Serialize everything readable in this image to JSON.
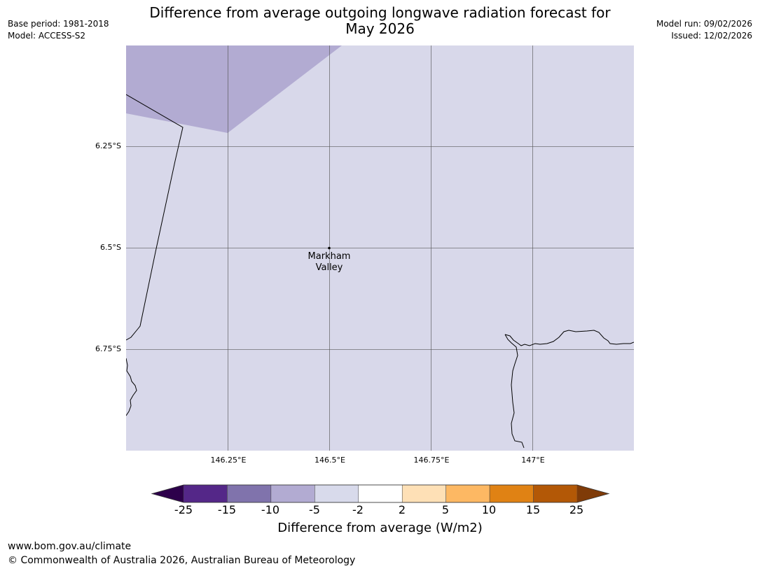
{
  "title": {
    "line1": "Difference from average outgoing longwave radiation forecast for",
    "line2": "May 2026"
  },
  "meta_left": {
    "base_period": "Base period: 1981-2018",
    "model": "Model: ACCESS-S2"
  },
  "meta_right": {
    "model_run": "Model run: 09/02/2026",
    "issued": "Issued: 12/02/2026"
  },
  "map": {
    "latitude_ticks": [
      "6.25°S",
      "6.5°S",
      "6.75°S"
    ],
    "longitude_ticks": [
      "146.25°E",
      "146.5°E",
      "146.75°E",
      "147°E"
    ],
    "place": {
      "name_line1": "Markham",
      "name_line2": "Valley",
      "lon": 146.5,
      "lat": -6.5
    },
    "fill_colors": {
      "band_minus5_minus2": "#d8d8ea",
      "band_minus10_minus5": "#b2abd2"
    },
    "coastline_color": "#000000",
    "grid_color": "#555555"
  },
  "colorbar": {
    "label": "Difference from average (W/m2)",
    "ticks": [
      "-25",
      "-15",
      "-10",
      "-5",
      "-2",
      "2",
      "5",
      "10",
      "15",
      "25"
    ],
    "under_color": "#2d004b",
    "over_color": "#7f3b08",
    "colors": [
      "#542788",
      "#8073ac",
      "#b2abd2",
      "#d8daeb",
      "#ffffff",
      "#fee0b6",
      "#fdb863",
      "#e08214",
      "#b35806"
    ]
  },
  "footer": {
    "url": "www.bom.gov.au/climate",
    "copyright": "© Commonwealth of Australia 2026, Australian Bureau of Meteorology"
  }
}
